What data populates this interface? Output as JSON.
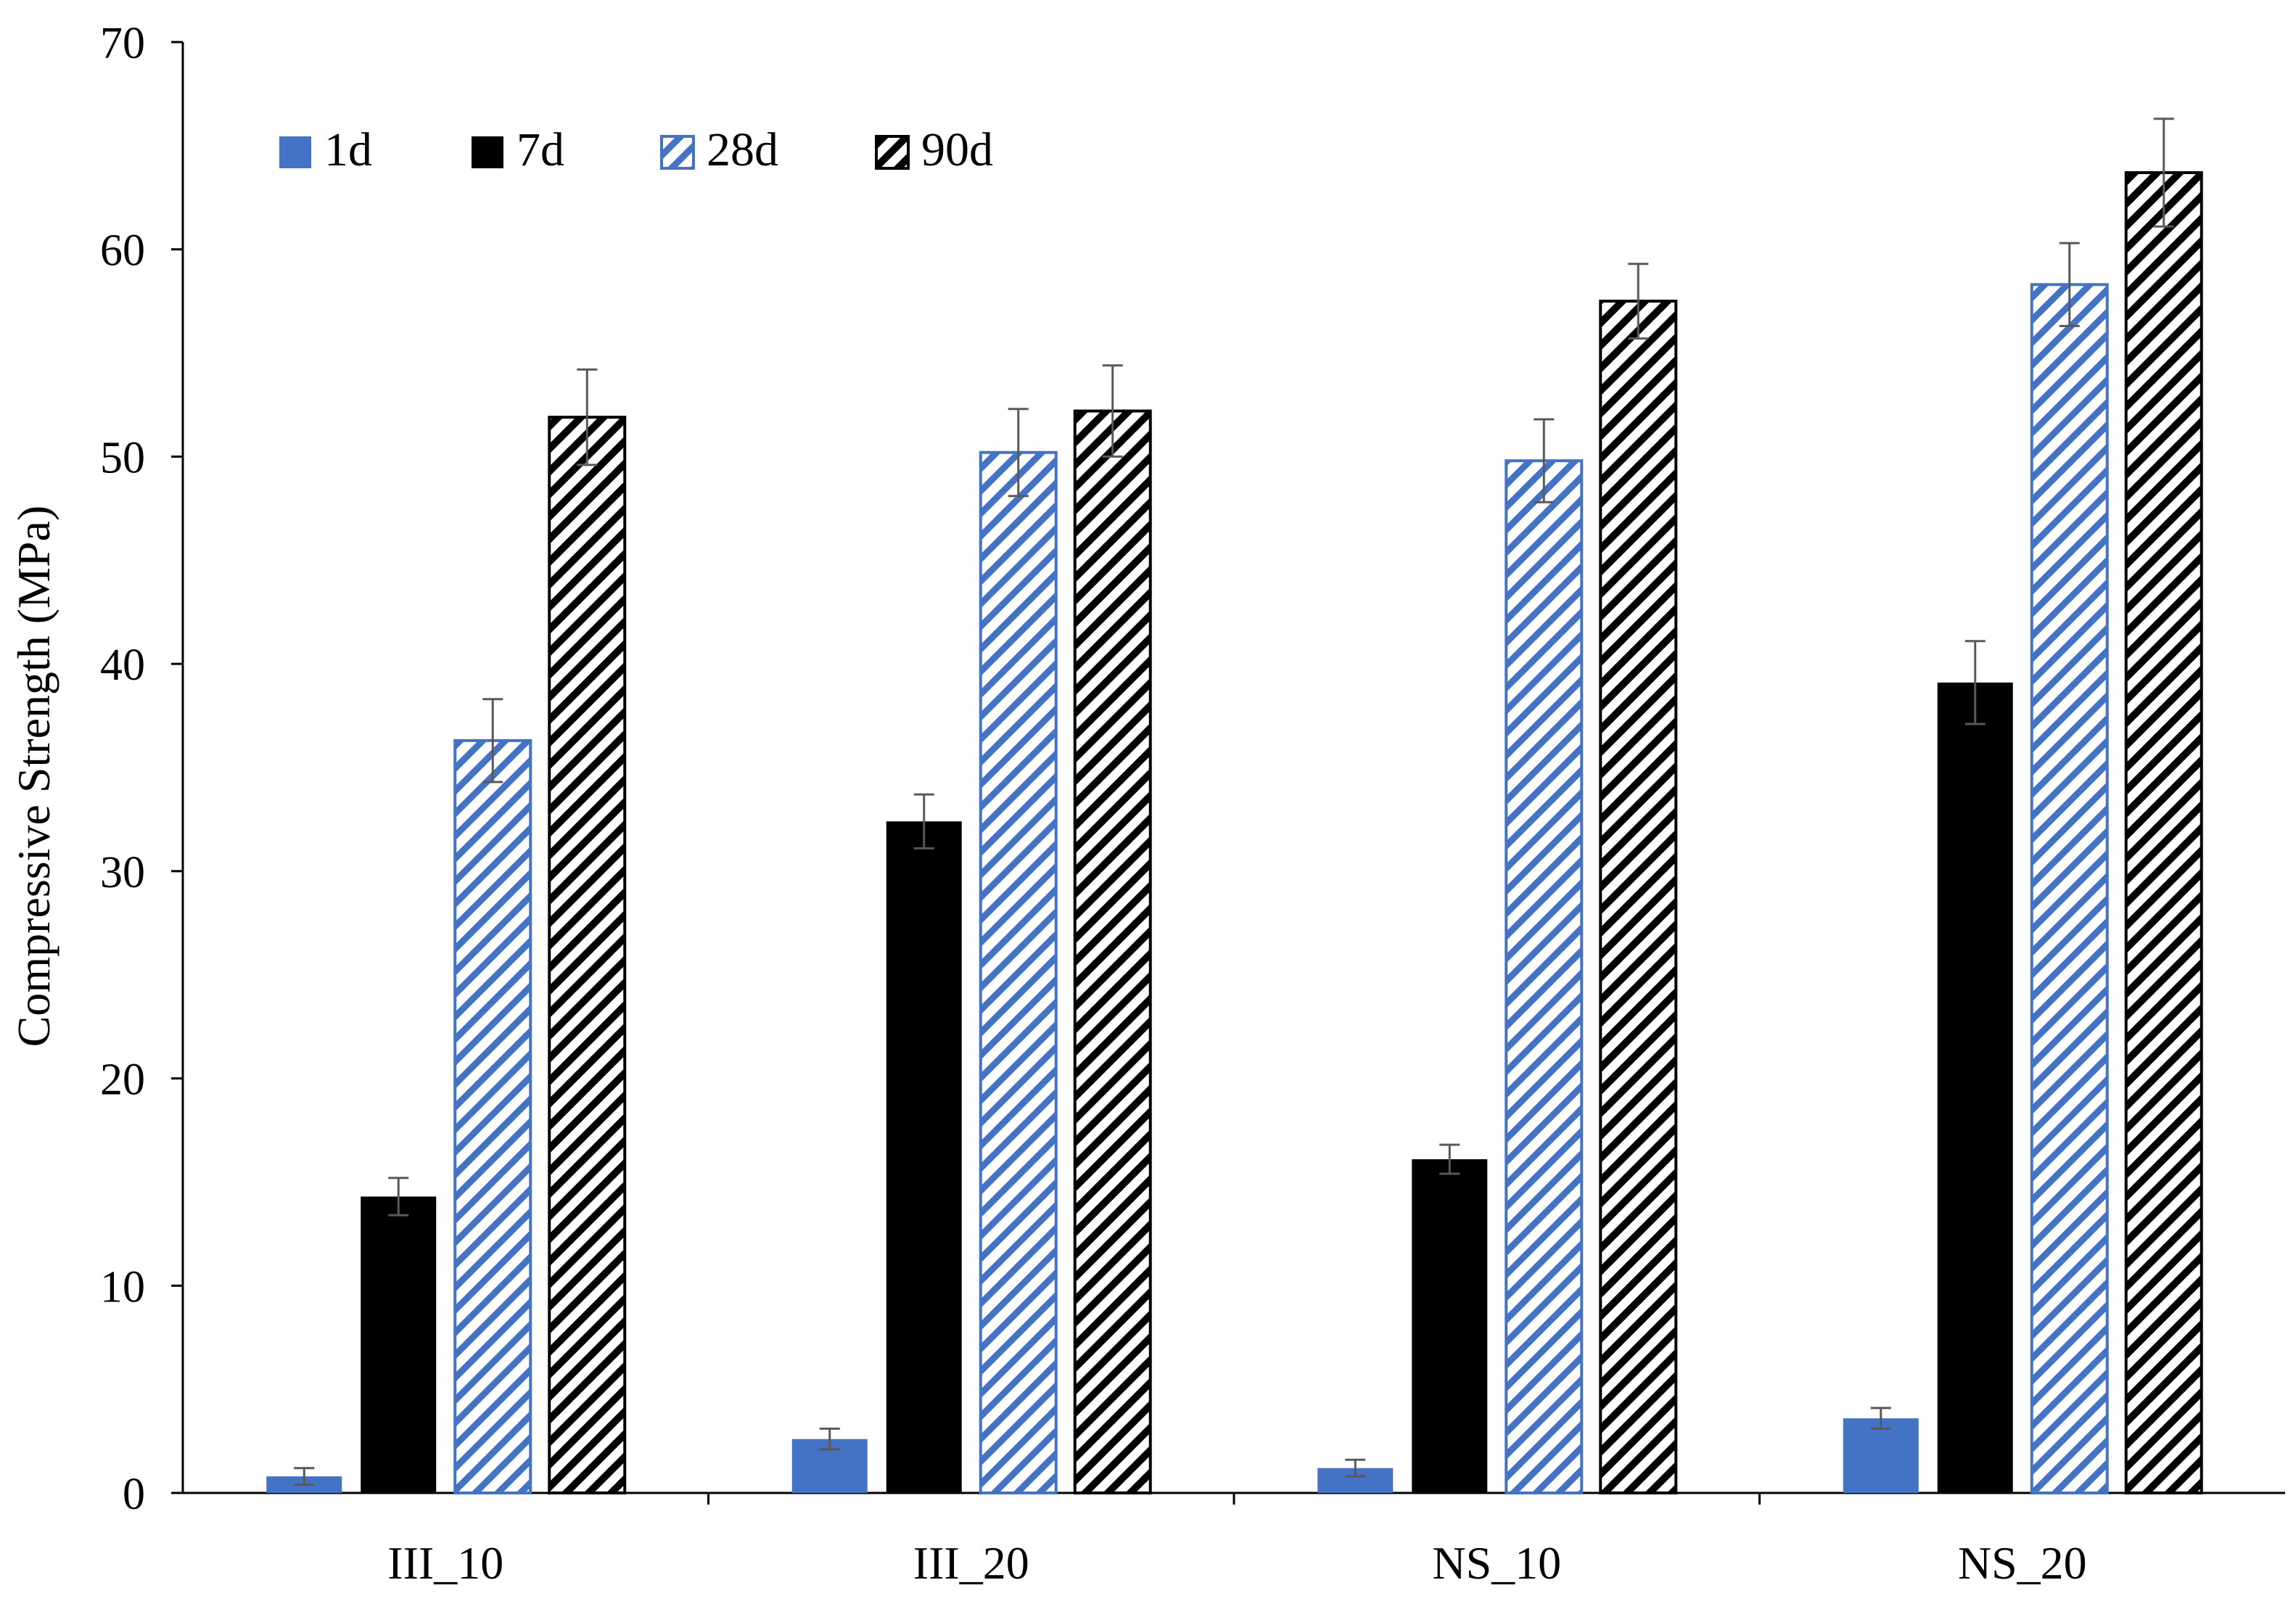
{
  "chart_data": {
    "type": "bar",
    "title": "",
    "xlabel": "",
    "ylabel": "Compressive Strength (MPa)",
    "ylim": [
      0,
      70
    ],
    "yticks": [
      0,
      10,
      20,
      30,
      40,
      50,
      60,
      70
    ],
    "grid": false,
    "legend_position": "top-left",
    "categories": [
      "III_10",
      "III_20",
      "NS_10",
      "NS_20"
    ],
    "series": [
      {
        "name": "1d",
        "pattern": "solid",
        "color": "#4472c4",
        "values": [
          0.8,
          2.6,
          1.2,
          3.6
        ],
        "errors": [
          0.4,
          0.5,
          0.4,
          0.5
        ]
      },
      {
        "name": "7d",
        "pattern": "solid",
        "color": "#000000",
        "values": [
          14.3,
          32.4,
          16.1,
          39.1
        ],
        "errors": [
          0.9,
          1.3,
          0.7,
          2.0
        ]
      },
      {
        "name": "28d",
        "pattern": "diagonal",
        "color": "#4472c4",
        "values": [
          36.3,
          50.2,
          49.8,
          58.3
        ],
        "errors": [
          2.0,
          2.1,
          2.0,
          2.0
        ]
      },
      {
        "name": "90d",
        "pattern": "diagonal",
        "color": "#000000",
        "values": [
          51.9,
          52.2,
          57.5,
          63.7
        ],
        "errors": [
          2.3,
          2.2,
          1.8,
          2.6
        ]
      }
    ]
  }
}
